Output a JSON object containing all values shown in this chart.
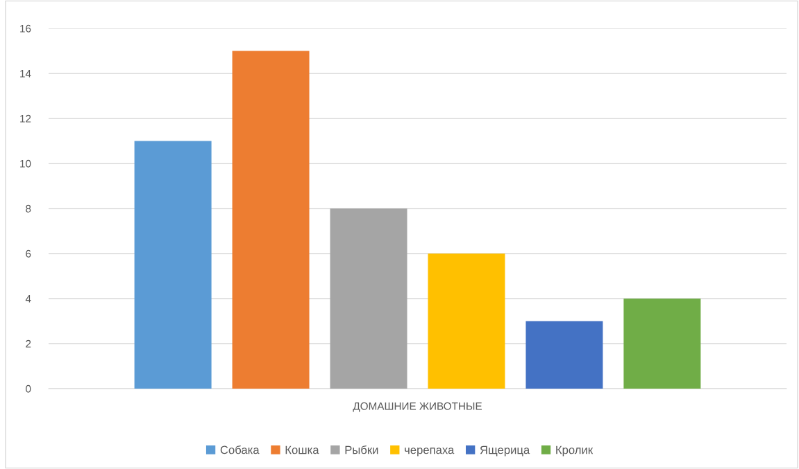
{
  "chart_data": {
    "type": "bar",
    "categories": [
      "ДОМАШНИЕ ЖИВОТНЫЕ"
    ],
    "series": [
      {
        "name": "Собака",
        "color": "#5b9bd5",
        "values": [
          11
        ]
      },
      {
        "name": "Кошка",
        "color": "#ed7d31",
        "values": [
          15
        ]
      },
      {
        "name": "Рыбки",
        "color": "#a5a5a5",
        "values": [
          8
        ]
      },
      {
        "name": "черепаха",
        "color": "#ffc000",
        "values": [
          6
        ]
      },
      {
        "name": "Ящерица",
        "color": "#4472c4",
        "values": [
          3
        ]
      },
      {
        "name": "Кролик",
        "color": "#70ad47",
        "values": [
          4
        ]
      }
    ],
    "ylim": [
      0,
      16
    ],
    "yticks": [
      0,
      2,
      4,
      6,
      8,
      10,
      12,
      14,
      16
    ],
    "grid": "y",
    "legend": "bottom"
  }
}
